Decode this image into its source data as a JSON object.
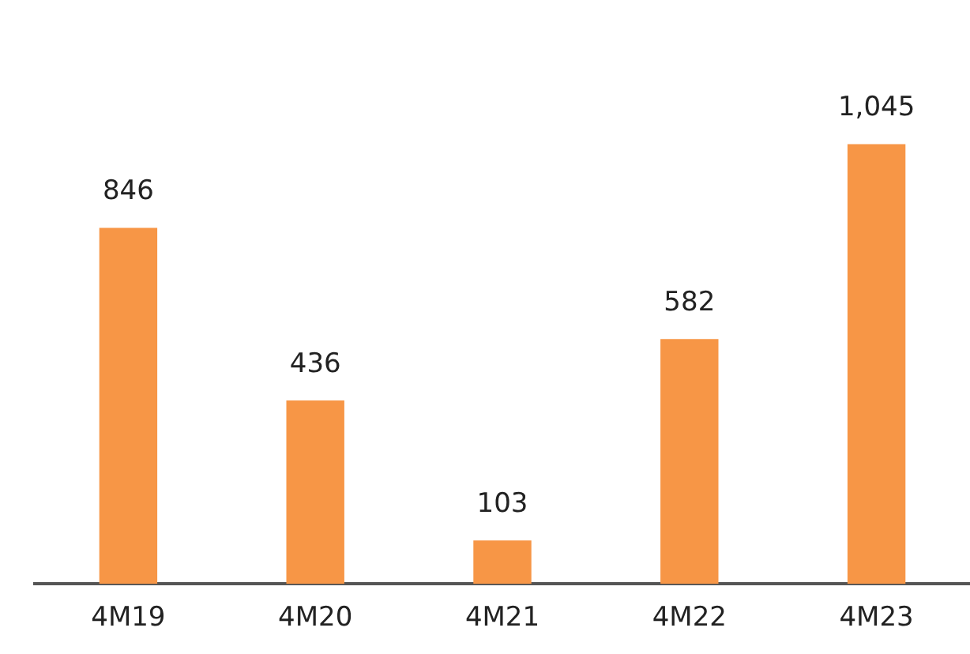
{
  "chart_data": {
    "type": "bar",
    "categories": [
      "4M19",
      "4M20",
      "4M21",
      "4M22",
      "4M23"
    ],
    "values": [
      846,
      436,
      103,
      582,
      1045
    ],
    "value_labels": [
      "846",
      "436",
      "103",
      "582",
      "1,045"
    ],
    "color": "#f79646",
    "relative": false,
    "grid": false,
    "legend": false
  }
}
